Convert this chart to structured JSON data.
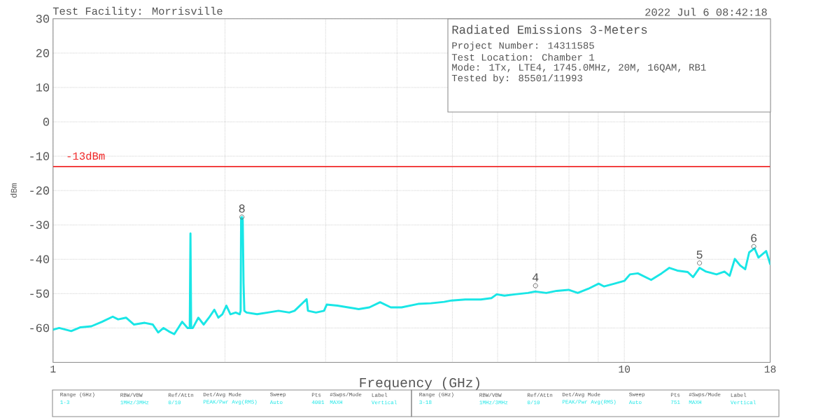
{
  "chart_data": {
    "type": "line",
    "title": "Radiated Emissions 3-Meters",
    "xlabel": "Frequency (GHz)",
    "ylabel": "dBm",
    "x": [
      1,
      1.025,
      1.076,
      1.117,
      1.167,
      1.218,
      1.272,
      1.3,
      1.342,
      1.386,
      1.447,
      1.495,
      1.528,
      1.561,
      1.595,
      1.63,
      1.683,
      1.72,
      1.735,
      1.74,
      1.745,
      1.757,
      1.796,
      1.835,
      1.875,
      1.916,
      1.947,
      1.979,
      2.011,
      2.044,
      2.088,
      2.122,
      2.13,
      2.134,
      2.141,
      2.148,
      2.155,
      2.162,
      2.181,
      2.276,
      2.376,
      2.481,
      2.591,
      2.647,
      2.779,
      2.794,
      2.886,
      2.981,
      3.013,
      3.146,
      3.284,
      3.428,
      3.579,
      3.737,
      3.902,
      4.074,
      4.355,
      4.588,
      4.838,
      4.983,
      5.265,
      5.609,
      5.853,
      5.98,
      6.168,
      6.434,
      6.782,
      6.985,
      7.302,
      7.614,
      7.987,
      8.288,
      8.646,
      9.017,
      9.21,
      9.607,
      10,
      10.23,
      10.56,
      11.14,
      11.62,
      11.99,
      12.38,
      12.91,
      13.19,
      13.54,
      13.9,
      14.5,
      14.97,
      15.29,
      15.61,
      15.95,
      16.28,
      16.54,
      16.9,
      17.17,
      17.71,
      18
    ],
    "values": [
      -60.5,
      -60,
      -60.9,
      -59.8,
      -59.5,
      -58.2,
      -56.7,
      -57.5,
      -57,
      -59,
      -58.5,
      -59,
      -61.3,
      -60,
      -61,
      -61.8,
      -58.2,
      -60,
      -60,
      -32.5,
      -60,
      -60,
      -57,
      -59,
      -57,
      -54.7,
      -57,
      -56,
      -53.5,
      -56,
      -55.5,
      -56,
      -55,
      -28,
      -27.7,
      -28.5,
      -47,
      -55,
      -55.5,
      -56,
      -55.5,
      -55,
      -55.5,
      -55,
      -51.6,
      -55,
      -55.5,
      -55,
      -53.2,
      -53.5,
      -54,
      -54.5,
      -54,
      -52.5,
      -54,
      -54,
      -53,
      -52.8,
      -52.4,
      -52,
      -51.7,
      -51.7,
      -51.3,
      -50.2,
      -50.6,
      -50.2,
      -49.8,
      -49.4,
      -49.8,
      -49.2,
      -48.9,
      -49.8,
      -48.6,
      -47.1,
      -47.9,
      -47.1,
      -46.3,
      -44.4,
      -44.1,
      -46,
      -44.1,
      -42.5,
      -43.3,
      -43.7,
      -45.2,
      -42.5,
      -43.6,
      -44.4,
      -43.6,
      -44.8,
      -39.9,
      -41.8,
      -42.9,
      -38,
      -36.8,
      -39.5,
      -37.6,
      -41.4
    ],
    "color": "#19e6e6",
    "xlim": [
      1,
      18
    ],
    "ylim": [
      -70,
      30
    ],
    "xticks": [
      1,
      {
        "value": 2,
        "label": null
      },
      {
        "value": 3,
        "label": null
      },
      {
        "value": 4,
        "label": null
      },
      {
        "value": 5,
        "label": null
      },
      {
        "value": 6,
        "label": null
      },
      {
        "value": 7,
        "label": null
      },
      {
        "value": 8,
        "label": null
      },
      {
        "value": 9,
        "label": null
      },
      10,
      18
    ],
    "yticks": [
      -60,
      -50,
      -40,
      -30,
      -20,
      -10,
      0,
      10,
      20,
      30
    ],
    "log": "x",
    "grid": true,
    "ref_lines": [
      {
        "axis": "y",
        "value": -13,
        "label": "-13dBm",
        "color": "#f02828"
      }
    ],
    "annotations": [
      "Test Facility: Morrisville",
      "2022 Jul 6   08:42:18",
      "Project Number: 14311585",
      "Test Location: Chamber 1",
      "Mode: 1Tx, LTE4, 1745.0MHz, 20M, 16QAM, RB1",
      "Tested by: 85501/11993",
      "Range (GHz)",
      "RBW/VBW",
      "Ref/Attn",
      "Det/Avg Mode",
      "Sweep",
      "Pts",
      "#Swps/Mode",
      "Label",
      "1-3",
      "1MHz/3MHz",
      "0/10",
      "PEAK/Pwr Avg(RMS)",
      "Auto",
      "4001",
      "MAXH",
      "Vertical",
      "Range (GHz)",
      "RBW/VBW",
      "Ref/Attn",
      "Det/Avg Mode",
      "Sweep",
      "Pts",
      "#Swps/Mode",
      "Label",
      "3-18",
      "1MHz/3MHz",
      "0/10",
      "PEAK/Pwr Avg(RMS)",
      "Auto",
      "751",
      "MAXH",
      "Vertical",
      {
        "text": "8",
        "x": 2.141,
        "y": -27.7
      },
      {
        "text": "4",
        "x": 6.99,
        "y": -47.7
      },
      {
        "text": "5",
        "x": 13.54,
        "y": -41.1
      },
      {
        "text": "6",
        "x": 16.85,
        "y": -36.3
      }
    ]
  }
}
